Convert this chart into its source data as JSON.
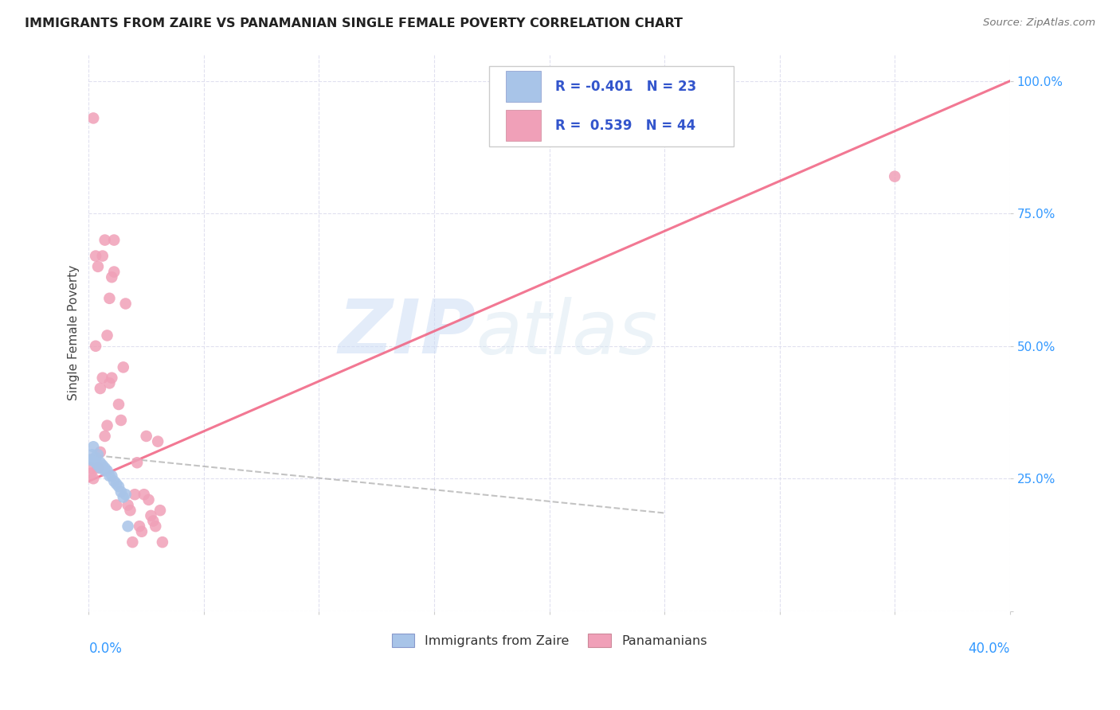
{
  "title": "IMMIGRANTS FROM ZAIRE VS PANAMANIAN SINGLE FEMALE POVERTY CORRELATION CHART",
  "source": "Source: ZipAtlas.com",
  "ylabel": "Single Female Poverty",
  "legend_labels": [
    "Immigrants from Zaire",
    "Panamanians"
  ],
  "legend_r_zaire": "-0.401",
  "legend_n_zaire": "23",
  "legend_r_pan": "0.539",
  "legend_n_pan": "44",
  "zaire_color": "#a8c4e8",
  "pan_color": "#f0a0b8",
  "zaire_line_color": "#5588bb",
  "pan_line_color": "#f06080",
  "watermark_zip": "ZIP",
  "watermark_atlas": "atlas",
  "bg_color": "#ffffff",
  "zaire_x": [
    0.001,
    0.0015,
    0.002,
    0.002,
    0.003,
    0.003,
    0.004,
    0.004,
    0.005,
    0.005,
    0.006,
    0.007,
    0.007,
    0.008,
    0.009,
    0.01,
    0.011,
    0.012,
    0.013,
    0.014,
    0.015,
    0.016,
    0.017
  ],
  "zaire_y": [
    0.285,
    0.295,
    0.285,
    0.31,
    0.29,
    0.28,
    0.295,
    0.275,
    0.28,
    0.27,
    0.275,
    0.27,
    0.265,
    0.265,
    0.255,
    0.255,
    0.245,
    0.24,
    0.235,
    0.225,
    0.215,
    0.22,
    0.16
  ],
  "pan_x": [
    0.001,
    0.001,
    0.002,
    0.002,
    0.003,
    0.003,
    0.004,
    0.004,
    0.005,
    0.005,
    0.006,
    0.006,
    0.007,
    0.007,
    0.008,
    0.008,
    0.009,
    0.009,
    0.01,
    0.01,
    0.011,
    0.011,
    0.012,
    0.013,
    0.014,
    0.015,
    0.016,
    0.017,
    0.018,
    0.019,
    0.02,
    0.021,
    0.022,
    0.023,
    0.024,
    0.025,
    0.026,
    0.027,
    0.028,
    0.029,
    0.03,
    0.031,
    0.032,
    0.35
  ],
  "pan_y": [
    0.26,
    0.27,
    0.25,
    0.93,
    0.5,
    0.67,
    0.27,
    0.65,
    0.3,
    0.42,
    0.44,
    0.67,
    0.33,
    0.7,
    0.35,
    0.52,
    0.43,
    0.59,
    0.44,
    0.63,
    0.64,
    0.7,
    0.2,
    0.39,
    0.36,
    0.46,
    0.58,
    0.2,
    0.19,
    0.13,
    0.22,
    0.28,
    0.16,
    0.15,
    0.22,
    0.33,
    0.21,
    0.18,
    0.17,
    0.16,
    0.32,
    0.19,
    0.13,
    0.82
  ],
  "xlim": [
    0,
    0.4
  ],
  "ylim": [
    0,
    1.05
  ],
  "ytick_vals": [
    0.0,
    0.25,
    0.5,
    0.75,
    1.0
  ],
  "ytick_labels": [
    "",
    "25.0%",
    "50.0%",
    "75.0%",
    "100.0%"
  ],
  "xtick_vals": [
    0.0,
    0.05,
    0.1,
    0.15,
    0.2,
    0.25,
    0.3,
    0.35,
    0.4
  ],
  "pan_line_x": [
    0.0,
    0.4
  ],
  "pan_line_y": [
    0.245,
    1.0
  ],
  "zaire_line_x": [
    0.0,
    0.25
  ],
  "zaire_line_y": [
    0.295,
    0.185
  ]
}
